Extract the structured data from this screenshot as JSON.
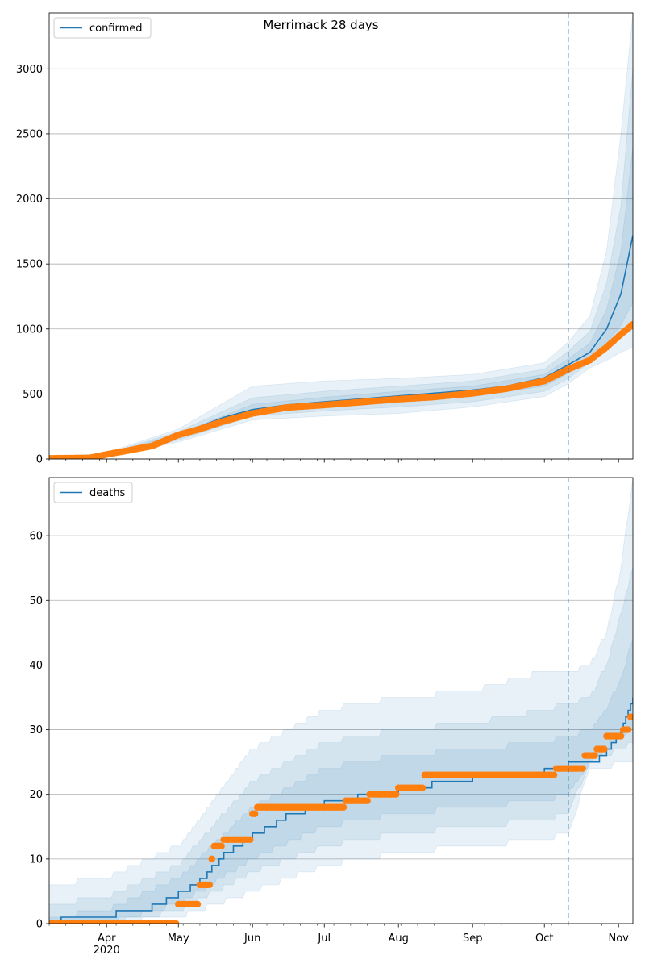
{
  "figure": {
    "title": "Merrimack 28 days"
  },
  "colors": {
    "model": "#1f77b4",
    "observed": "#ff7f0e",
    "grid": "#b0b0b0",
    "band": "#1f77b4"
  },
  "x_axis": {
    "start_date": "2020-03-08",
    "end_date": "2020-11-07",
    "month_ticks": [
      {
        "date": "2020-04-01",
        "label": "Apr"
      },
      {
        "date": "2020-05-01",
        "label": "May"
      },
      {
        "date": "2020-06-01",
        "label": "Jun"
      },
      {
        "date": "2020-07-01",
        "label": "Jul"
      },
      {
        "date": "2020-08-01",
        "label": "Aug"
      },
      {
        "date": "2020-09-01",
        "label": "Sep"
      },
      {
        "date": "2020-10-01",
        "label": "Oct"
      },
      {
        "date": "2020-11-01",
        "label": "Nov"
      }
    ],
    "year_label": "2020",
    "forecast_start": "2020-10-11"
  },
  "chart_data": [
    {
      "type": "line",
      "legend": "confirmed",
      "legend_position": "top-left",
      "grid": true,
      "ylim": [
        0,
        3430
      ],
      "yticks": [
        0,
        500,
        1000,
        1500,
        2000,
        2500,
        3000
      ],
      "model": [
        [
          "2020-03-08",
          0
        ],
        [
          "2020-03-25",
          5
        ],
        [
          "2020-04-01",
          30
        ],
        [
          "2020-04-10",
          70
        ],
        [
          "2020-04-20",
          110
        ],
        [
          "2020-05-01",
          175
        ],
        [
          "2020-05-10",
          250
        ],
        [
          "2020-05-20",
          320
        ],
        [
          "2020-06-01",
          380
        ],
        [
          "2020-06-15",
          415
        ],
        [
          "2020-07-01",
          440
        ],
        [
          "2020-07-15",
          460
        ],
        [
          "2020-08-01",
          485
        ],
        [
          "2020-08-15",
          505
        ],
        [
          "2020-09-01",
          530
        ],
        [
          "2020-09-15",
          560
        ],
        [
          "2020-10-01",
          625
        ],
        [
          "2020-10-11",
          725
        ],
        [
          "2020-10-20",
          820
        ],
        [
          "2020-10-27",
          1000
        ],
        [
          "2020-11-02",
          1270
        ],
        [
          "2020-11-07",
          1720
        ]
      ],
      "bands": [
        {
          "upper": [
            [
              "2020-03-08",
              0
            ],
            [
              "2020-04-01",
              50
            ],
            [
              "2020-05-01",
              230
            ],
            [
              "2020-06-01",
              560
            ],
            [
              "2020-07-01",
              600
            ],
            [
              "2020-08-01",
              620
            ],
            [
              "2020-09-01",
              650
            ],
            [
              "2020-10-01",
              740
            ],
            [
              "2020-10-11",
              900
            ],
            [
              "2020-10-20",
              1100
            ],
            [
              "2020-10-27",
              1600
            ],
            [
              "2020-11-02",
              2500
            ],
            [
              "2020-11-07",
              3430
            ]
          ],
          "lower": [
            [
              "2020-03-08",
              0
            ],
            [
              "2020-04-01",
              15
            ],
            [
              "2020-05-01",
              130
            ],
            [
              "2020-06-01",
              300
            ],
            [
              "2020-07-01",
              330
            ],
            [
              "2020-08-01",
              350
            ],
            [
              "2020-09-01",
              400
            ],
            [
              "2020-10-01",
              480
            ],
            [
              "2020-10-11",
              580
            ],
            [
              "2020-10-20",
              700
            ],
            [
              "2020-10-27",
              760
            ],
            [
              "2020-11-02",
              820
            ],
            [
              "2020-11-07",
              860
            ]
          ]
        },
        {
          "upper": [
            [
              "2020-03-08",
              0
            ],
            [
              "2020-04-01",
              42
            ],
            [
              "2020-05-01",
              210
            ],
            [
              "2020-06-01",
              470
            ],
            [
              "2020-07-01",
              520
            ],
            [
              "2020-08-01",
              560
            ],
            [
              "2020-09-01",
              600
            ],
            [
              "2020-10-01",
              690
            ],
            [
              "2020-10-11",
              830
            ],
            [
              "2020-10-20",
              980
            ],
            [
              "2020-10-27",
              1350
            ],
            [
              "2020-11-02",
              1950
            ],
            [
              "2020-11-07",
              3000
            ]
          ],
          "lower": [
            [
              "2020-03-08",
              0
            ],
            [
              "2020-04-01",
              20
            ],
            [
              "2020-05-01",
              145
            ],
            [
              "2020-06-01",
              330
            ],
            [
              "2020-07-01",
              370
            ],
            [
              "2020-08-01",
              400
            ],
            [
              "2020-09-01",
              440
            ],
            [
              "2020-10-01",
              520
            ],
            [
              "2020-10-11",
              620
            ],
            [
              "2020-10-20",
              740
            ],
            [
              "2020-10-27",
              830
            ],
            [
              "2020-11-02",
              930
            ],
            [
              "2020-11-07",
              1000
            ]
          ]
        },
        {
          "upper": [
            [
              "2020-03-08",
              0
            ],
            [
              "2020-04-01",
              36
            ],
            [
              "2020-05-01",
              195
            ],
            [
              "2020-06-01",
              420
            ],
            [
              "2020-07-01",
              475
            ],
            [
              "2020-08-01",
              520
            ],
            [
              "2020-09-01",
              560
            ],
            [
              "2020-10-01",
              650
            ],
            [
              "2020-10-11",
              770
            ],
            [
              "2020-10-20",
              890
            ],
            [
              "2020-10-27",
              1150
            ],
            [
              "2020-11-02",
              1600
            ],
            [
              "2020-11-07",
              2400
            ]
          ],
          "lower": [
            [
              "2020-03-08",
              0
            ],
            [
              "2020-04-01",
              24
            ],
            [
              "2020-05-01",
              160
            ],
            [
              "2020-06-01",
              350
            ],
            [
              "2020-07-01",
              400
            ],
            [
              "2020-08-01",
              440
            ],
            [
              "2020-09-01",
              480
            ],
            [
              "2020-10-01",
              560
            ],
            [
              "2020-10-11",
              660
            ],
            [
              "2020-10-20",
              770
            ],
            [
              "2020-10-27",
              890
            ],
            [
              "2020-11-02",
              1030
            ],
            [
              "2020-11-07",
              1200
            ]
          ]
        }
      ],
      "observed": [
        [
          "2020-03-08",
          5
        ],
        [
          "2020-03-25",
          8
        ],
        [
          "2020-04-01",
          35
        ],
        [
          "2020-04-10",
          65
        ],
        [
          "2020-04-20",
          100
        ],
        [
          "2020-05-01",
          185
        ],
        [
          "2020-05-10",
          230
        ],
        [
          "2020-05-20",
          290
        ],
        [
          "2020-06-01",
          350
        ],
        [
          "2020-06-15",
          395
        ],
        [
          "2020-07-01",
          415
        ],
        [
          "2020-07-15",
          435
        ],
        [
          "2020-08-01",
          460
        ],
        [
          "2020-08-15",
          475
        ],
        [
          "2020-09-01",
          505
        ],
        [
          "2020-09-15",
          540
        ],
        [
          "2020-10-01",
          600
        ],
        [
          "2020-10-11",
          690
        ],
        [
          "2020-10-20",
          760
        ],
        [
          "2020-10-27",
          860
        ],
        [
          "2020-11-02",
          960
        ],
        [
          "2020-11-07",
          1035
        ]
      ]
    },
    {
      "type": "line",
      "legend": "deaths",
      "legend_position": "top-left",
      "grid": true,
      "ylim": [
        0,
        69
      ],
      "yticks": [
        0,
        10,
        20,
        30,
        40,
        50,
        60
      ],
      "model": [
        [
          "2020-03-08",
          0
        ],
        [
          "2020-03-13",
          1
        ],
        [
          "2020-04-05",
          2
        ],
        [
          "2020-04-20",
          3
        ],
        [
          "2020-05-01",
          5
        ],
        [
          "2020-05-10",
          7
        ],
        [
          "2020-05-20",
          11
        ],
        [
          "2020-06-01",
          14
        ],
        [
          "2020-06-15",
          17
        ],
        [
          "2020-07-01",
          19
        ],
        [
          "2020-07-15",
          20
        ],
        [
          "2020-08-01",
          21
        ],
        [
          "2020-08-15",
          22
        ],
        [
          "2020-09-01",
          23
        ],
        [
          "2020-09-20",
          23
        ],
        [
          "2020-10-01",
          24
        ],
        [
          "2020-10-11",
          25
        ],
        [
          "2020-10-20",
          25
        ],
        [
          "2020-10-27",
          27
        ],
        [
          "2020-11-02",
          30
        ],
        [
          "2020-11-07",
          35
        ]
      ],
      "bands": [
        {
          "upper": [
            [
              "2020-03-08",
              6
            ],
            [
              "2020-04-01",
              7
            ],
            [
              "2020-05-01",
              12
            ],
            [
              "2020-06-01",
              27
            ],
            [
              "2020-07-01",
              33
            ],
            [
              "2020-08-01",
              35
            ],
            [
              "2020-09-01",
              36
            ],
            [
              "2020-10-01",
              39
            ],
            [
              "2020-10-11",
              39
            ],
            [
              "2020-10-20",
              40
            ],
            [
              "2020-10-27",
              45
            ],
            [
              "2020-11-02",
              55
            ],
            [
              "2020-11-07",
              69
            ]
          ],
          "lower": [
            [
              "2020-03-08",
              0
            ],
            [
              "2020-04-01",
              0
            ],
            [
              "2020-05-01",
              1
            ],
            [
              "2020-06-01",
              5
            ],
            [
              "2020-07-01",
              9
            ],
            [
              "2020-08-01",
              11
            ],
            [
              "2020-09-01",
              12
            ],
            [
              "2020-10-01",
              13
            ],
            [
              "2020-10-11",
              14
            ],
            [
              "2020-10-20",
              24
            ],
            [
              "2020-10-27",
              24
            ],
            [
              "2020-11-02",
              25
            ],
            [
              "2020-11-07",
              25
            ]
          ]
        },
        {
          "upper": [
            [
              "2020-03-08",
              3
            ],
            [
              "2020-04-01",
              4
            ],
            [
              "2020-05-01",
              9
            ],
            [
              "2020-06-01",
              22
            ],
            [
              "2020-07-01",
              28
            ],
            [
              "2020-08-01",
              30
            ],
            [
              "2020-09-01",
              31
            ],
            [
              "2020-10-01",
              33
            ],
            [
              "2020-10-11",
              34
            ],
            [
              "2020-10-20",
              35
            ],
            [
              "2020-10-27",
              40
            ],
            [
              "2020-11-02",
              48
            ],
            [
              "2020-11-07",
              55
            ]
          ],
          "lower": [
            [
              "2020-03-08",
              0
            ],
            [
              "2020-04-01",
              0
            ],
            [
              "2020-05-01",
              2
            ],
            [
              "2020-06-01",
              8
            ],
            [
              "2020-07-01",
              12
            ],
            [
              "2020-08-01",
              14
            ],
            [
              "2020-09-01",
              15
            ],
            [
              "2020-10-01",
              16
            ],
            [
              "2020-10-11",
              17
            ],
            [
              "2020-10-20",
              25
            ],
            [
              "2020-10-27",
              26
            ],
            [
              "2020-11-02",
              27
            ],
            [
              "2020-11-07",
              28
            ]
          ]
        },
        {
          "upper": [
            [
              "2020-03-08",
              1
            ],
            [
              "2020-04-01",
              2
            ],
            [
              "2020-05-01",
              7
            ],
            [
              "2020-06-01",
              18
            ],
            [
              "2020-07-01",
              24
            ],
            [
              "2020-08-01",
              26
            ],
            [
              "2020-09-01",
              27
            ],
            [
              "2020-10-01",
              28
            ],
            [
              "2020-10-11",
              29
            ],
            [
              "2020-10-20",
              30
            ],
            [
              "2020-10-27",
              33
            ],
            [
              "2020-11-02",
              38
            ],
            [
              "2020-11-07",
              44
            ]
          ],
          "lower": [
            [
              "2020-03-08",
              0
            ],
            [
              "2020-04-01",
              0
            ],
            [
              "2020-05-01",
              3
            ],
            [
              "2020-06-01",
              10
            ],
            [
              "2020-07-01",
              15
            ],
            [
              "2020-08-01",
              17
            ],
            [
              "2020-09-01",
              18
            ],
            [
              "2020-10-01",
              19
            ],
            [
              "2020-10-11",
              20
            ],
            [
              "2020-10-20",
              25
            ],
            [
              "2020-10-27",
              27
            ],
            [
              "2020-11-02",
              29
            ],
            [
              "2020-11-07",
              30
            ]
          ]
        }
      ],
      "observed": [
        [
          "2020-03-08",
          0
        ],
        [
          "2020-04-28",
          0
        ],
        [
          "2020-05-01",
          3
        ],
        [
          "2020-05-10",
          6
        ],
        [
          "2020-05-15",
          10
        ],
        [
          "2020-05-16",
          12
        ],
        [
          "2020-05-20",
          13
        ],
        [
          "2020-06-01",
          17
        ],
        [
          "2020-06-03",
          18
        ],
        [
          "2020-07-01",
          18
        ],
        [
          "2020-07-10",
          19
        ],
        [
          "2020-07-20",
          20
        ],
        [
          "2020-08-01",
          21
        ],
        [
          "2020-08-12",
          23
        ],
        [
          "2020-09-01",
          23
        ],
        [
          "2020-10-01",
          23
        ],
        [
          "2020-10-06",
          24
        ],
        [
          "2020-10-15",
          24
        ],
        [
          "2020-10-18",
          26
        ],
        [
          "2020-10-23",
          27
        ],
        [
          "2020-10-27",
          29
        ],
        [
          "2020-11-01",
          29
        ],
        [
          "2020-11-03",
          30
        ],
        [
          "2020-11-06",
          32
        ]
      ]
    }
  ]
}
